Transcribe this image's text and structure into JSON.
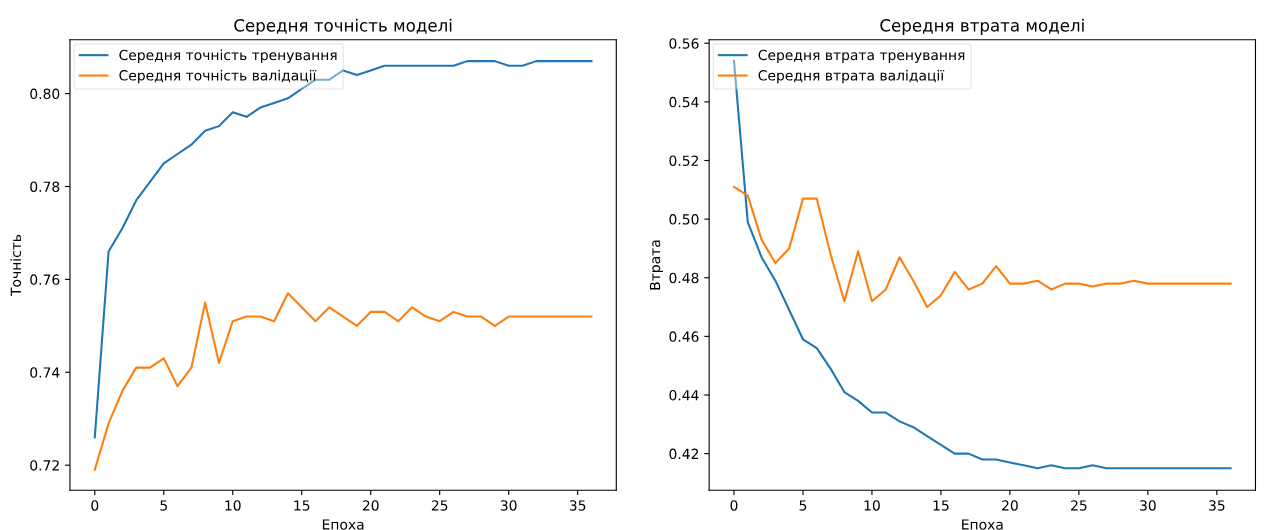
{
  "chart_data": [
    {
      "type": "line",
      "title": "Середня точність моделі",
      "xlabel": "Епоха",
      "ylabel": "Точність",
      "x": [
        0,
        1,
        2,
        3,
        4,
        5,
        6,
        7,
        8,
        9,
        10,
        11,
        12,
        13,
        14,
        15,
        16,
        17,
        18,
        19,
        20,
        21,
        22,
        23,
        24,
        25,
        26,
        27,
        28,
        29,
        30,
        31,
        32,
        33,
        34,
        35,
        36
      ],
      "series": [
        {
          "name": "Середня точність тренування",
          "color": "#1f77b4",
          "values": [
            0.726,
            0.766,
            0.771,
            0.777,
            0.781,
            0.785,
            0.787,
            0.789,
            0.792,
            0.793,
            0.796,
            0.795,
            0.797,
            0.798,
            0.799,
            0.801,
            0.803,
            0.803,
            0.805,
            0.804,
            0.805,
            0.806,
            0.806,
            0.806,
            0.806,
            0.806,
            0.806,
            0.807,
            0.807,
            0.807,
            0.806,
            0.806,
            0.807,
            0.807,
            0.807,
            0.807,
            0.807
          ]
        },
        {
          "name": "Середня точність валідації",
          "color": "#ff7f0e",
          "values": [
            0.719,
            0.729,
            0.736,
            0.741,
            0.741,
            0.743,
            0.737,
            0.741,
            0.755,
            0.742,
            0.751,
            0.752,
            0.752,
            0.751,
            0.757,
            0.754,
            0.751,
            0.754,
            0.752,
            0.75,
            0.753,
            0.753,
            0.751,
            0.754,
            0.752,
            0.751,
            0.753,
            0.752,
            0.752,
            0.75,
            0.752,
            0.752,
            0.752,
            0.752,
            0.752,
            0.752,
            0.752
          ]
        }
      ],
      "xlim": [
        -1.8,
        37.8
      ],
      "xticks": [
        0,
        5,
        10,
        15,
        20,
        25,
        30,
        35
      ],
      "ylim": [
        0.7146,
        0.8116
      ],
      "yticks": [
        {
          "value": 0.72,
          "label": "0.72"
        },
        {
          "value": 0.74,
          "label": "0.74"
        },
        {
          "value": 0.76,
          "label": "0.76"
        },
        {
          "value": 0.78,
          "label": "0.78"
        },
        {
          "value": 0.8,
          "label": "0.80"
        }
      ],
      "legend": "top left",
      "grid": false
    },
    {
      "type": "line",
      "title": "Середня втрата моделі",
      "xlabel": "Епоха",
      "ylabel": "Втрата",
      "x": [
        0,
        1,
        2,
        3,
        4,
        5,
        6,
        7,
        8,
        9,
        10,
        11,
        12,
        13,
        14,
        15,
        16,
        17,
        18,
        19,
        20,
        21,
        22,
        23,
        24,
        25,
        26,
        27,
        28,
        29,
        30,
        31,
        32,
        33,
        34,
        35,
        36
      ],
      "series": [
        {
          "name": "Середня втрата тренування",
          "color": "#1f77b4",
          "values": [
            0.554,
            0.499,
            0.487,
            0.479,
            0.469,
            0.459,
            0.456,
            0.449,
            0.441,
            0.438,
            0.434,
            0.434,
            0.431,
            0.429,
            0.426,
            0.423,
            0.42,
            0.42,
            0.418,
            0.418,
            0.417,
            0.416,
            0.415,
            0.416,
            0.415,
            0.415,
            0.416,
            0.415,
            0.415,
            0.415,
            0.415,
            0.415,
            0.415,
            0.415,
            0.415,
            0.415,
            0.415
          ]
        },
        {
          "name": "Середня втрата валідації",
          "color": "#ff7f0e",
          "values": [
            0.511,
            0.508,
            0.493,
            0.485,
            0.49,
            0.507,
            0.507,
            0.488,
            0.472,
            0.489,
            0.472,
            0.476,
            0.487,
            0.479,
            0.47,
            0.474,
            0.482,
            0.476,
            0.478,
            0.484,
            0.478,
            0.478,
            0.479,
            0.476,
            0.478,
            0.478,
            0.477,
            0.478,
            0.478,
            0.479,
            0.478,
            0.478,
            0.478,
            0.478,
            0.478,
            0.478,
            0.478
          ]
        }
      ],
      "xlim": [
        -1.8,
        37.8
      ],
      "xticks": [
        0,
        5,
        10,
        15,
        20,
        25,
        30,
        35
      ],
      "ylim": [
        0.4075,
        0.5612
      ],
      "yticks": [
        {
          "value": 0.42,
          "label": "0.42"
        },
        {
          "value": 0.44,
          "label": "0.44"
        },
        {
          "value": 0.46,
          "label": "0.46"
        },
        {
          "value": 0.48,
          "label": "0.48"
        },
        {
          "value": 0.5,
          "label": "0.50"
        },
        {
          "value": 0.52,
          "label": "0.52"
        },
        {
          "value": 0.54,
          "label": "0.54"
        },
        {
          "value": 0.56,
          "label": "0.56"
        }
      ],
      "legend": "top left",
      "grid": false
    }
  ]
}
